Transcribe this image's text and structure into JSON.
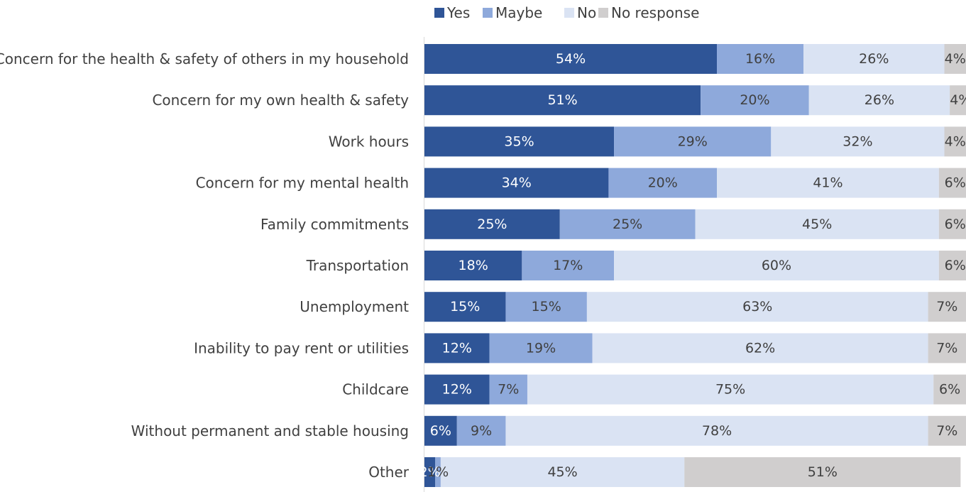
{
  "chart_data": {
    "type": "bar",
    "orientation": "horizontal",
    "stacked": "100%",
    "legend_position": "top",
    "grid": false,
    "title": "",
    "xlabel": "",
    "ylabel": "",
    "xlim": [
      0,
      100
    ],
    "categories": [
      "Concern for the health & safety of others in my household",
      "Concern for my own health & safety",
      "Work hours",
      "Concern for my mental health",
      "Family commitments",
      "Transportation",
      "Unemployment",
      "Inability  to pay rent or utilities",
      "Childcare",
      "Without permanent and stable housing",
      "Other"
    ],
    "series": [
      {
        "name": "Yes",
        "color": "#2F5597",
        "label_color": "#ffffff",
        "values": [
          54,
          51,
          35,
          34,
          25,
          18,
          15,
          12,
          12,
          6,
          2
        ]
      },
      {
        "name": "Maybe",
        "color": "#8EA9DB",
        "label_color": "#404040",
        "values": [
          16,
          20,
          29,
          20,
          25,
          17,
          15,
          19,
          7,
          9,
          1
        ]
      },
      {
        "name": "No",
        "color": "#DAE3F3",
        "label_color": "#404040",
        "values": [
          26,
          26,
          32,
          41,
          45,
          60,
          63,
          62,
          75,
          78,
          45
        ]
      },
      {
        "name": "No response",
        "color": "#D0CECE",
        "label_color": "#404040",
        "values": [
          4,
          4,
          4,
          6,
          6,
          6,
          7,
          7,
          6,
          7,
          51
        ]
      }
    ],
    "data_labels": [
      [
        "54%",
        "16%",
        "26%",
        "4%"
      ],
      [
        "51%",
        "20%",
        "26%",
        "4%"
      ],
      [
        "35%",
        "29%",
        "32%",
        "4%"
      ],
      [
        "34%",
        "20%",
        "41%",
        "6%"
      ],
      [
        "25%",
        "25%",
        "45%",
        "6%"
      ],
      [
        "18%",
        "17%",
        "60%",
        "6%"
      ],
      [
        "15%",
        "15%",
        "63%",
        "7%"
      ],
      [
        "12%",
        "19%",
        "62%",
        "7%"
      ],
      [
        "12%",
        "7%",
        "75%",
        "6%"
      ],
      [
        "6%",
        "9%",
        "78%",
        "7%"
      ],
      [
        "2%",
        "1%",
        "45%",
        "51%"
      ]
    ]
  }
}
